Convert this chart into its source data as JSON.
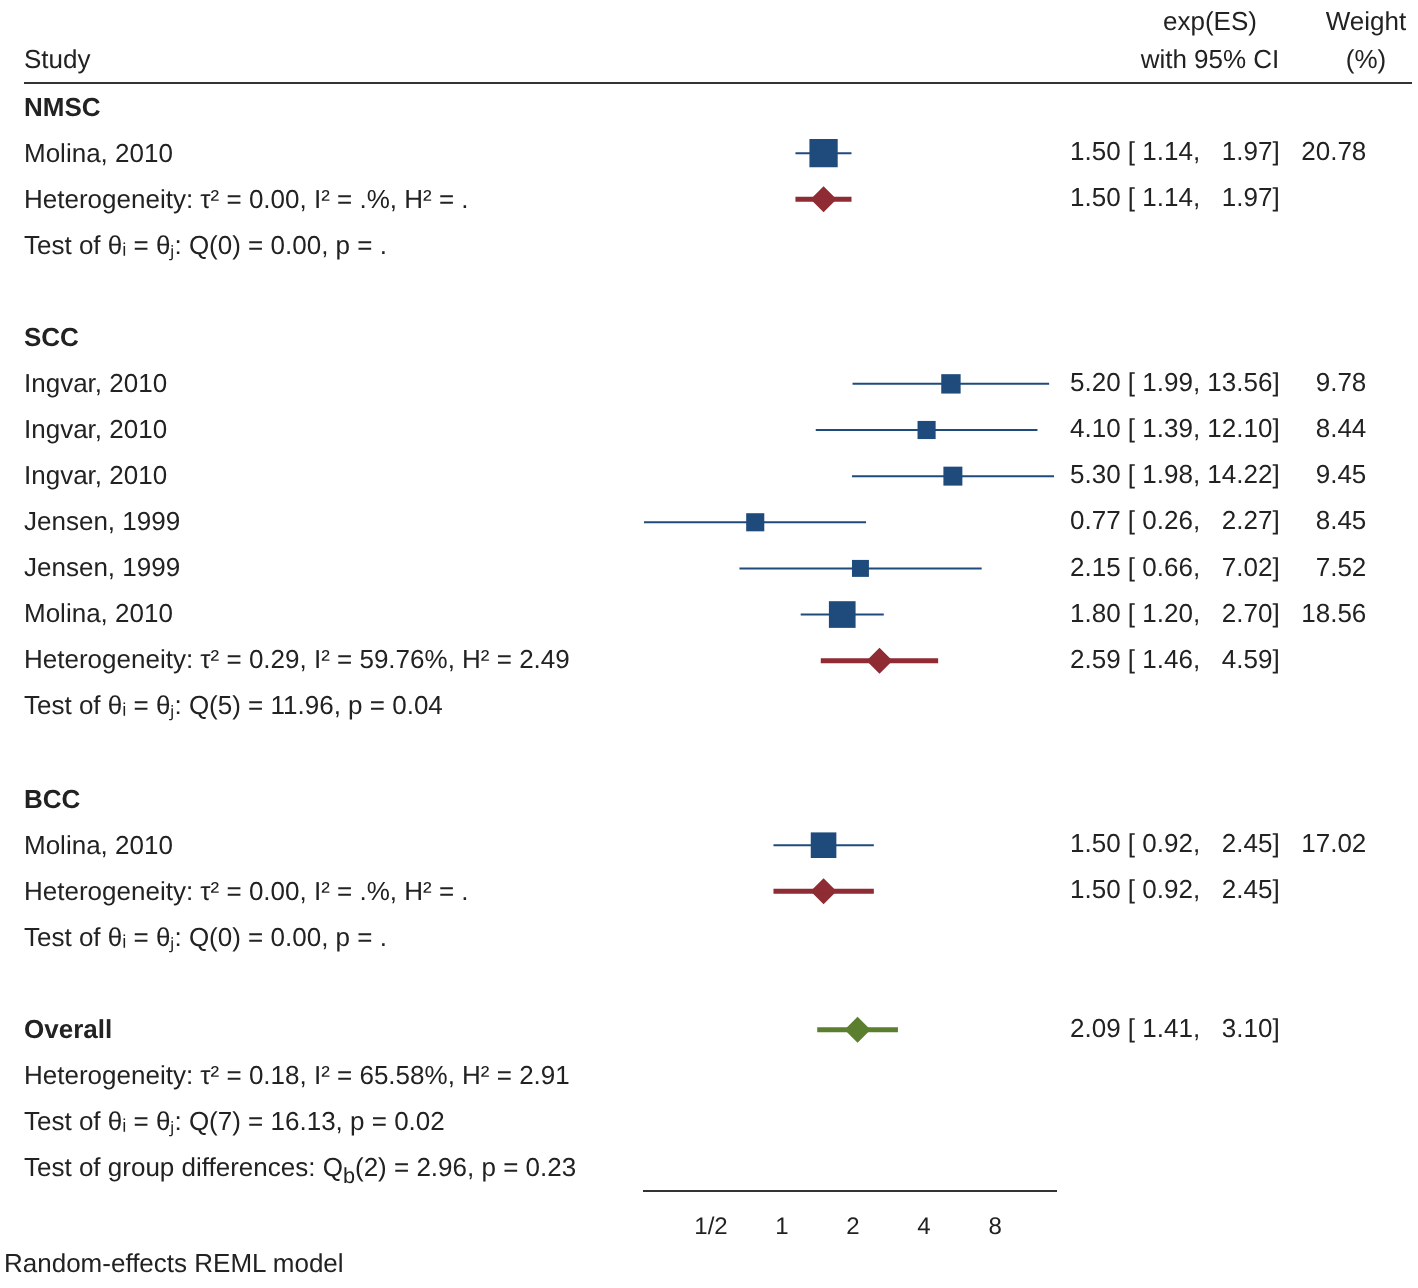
{
  "chart_data": {
    "type": "scatter",
    "orientation": "horizontal",
    "log": "x",
    "ylabel": "Study",
    "annotations": [
      "exp(ES)",
      "with 95% CI",
      "Weight",
      "(%)",
      "Random-effects REML model"
    ],
    "categories": [
      "NMSC",
      "Molina, 2010",
      "Heterogeneity: τ² = 0.00, I² = .%, H² = .",
      "Test of θᵢ = θⱼ: Q(0) = 0.00, p = .",
      null,
      "SCC",
      "Ingvar, 2010",
      "Ingvar, 2010",
      "Ingvar, 2010",
      "Jensen, 1999",
      "Jensen, 1999",
      "Molina, 2010",
      "Heterogeneity: τ² = 0.29, I² = 59.76%, H² = 2.49",
      "Test of θᵢ = θⱼ: Q(5) = 11.96, p = 0.04",
      null,
      "BCC",
      "Molina, 2010",
      "Heterogeneity: τ² = 0.00, I² = .%, H² = .",
      "Test of θᵢ = θⱼ: Q(0) = 0.00, p = .",
      null,
      "Overall",
      "Heterogeneity: τ² = 0.18, I² = 65.58%, H² = 2.91",
      "Test of θᵢ = θⱼ: Q(7) = 16.13, p = 0.02",
      "Test of group differences: Q$_{b}$(2) = 2.96, p = 0.23"
    ],
    "xlim": [
      0.26,
      14.5
    ],
    "xticks": [
      {
        "value": 0.5,
        "label": "1/2"
      },
      1,
      2,
      4,
      8
    ],
    "series": [
      {
        "type": "bubble",
        "marker": "square",
        "color": "#1f4a7c",
        "values": [
          null,
          1.5,
          null,
          null,
          null,
          null,
          5.2,
          4.1,
          5.3,
          0.77,
          2.15,
          1.8,
          null,
          null,
          null,
          null,
          1.5,
          null,
          null,
          null,
          null,
          null,
          null,
          null
        ],
        "errors": [
          null,
          [
            1.14,
            1.97
          ],
          null,
          null,
          null,
          null,
          [
            1.99,
            13.56
          ],
          [
            1.39,
            12.1
          ],
          [
            1.98,
            14.22
          ],
          [
            0.26,
            2.27
          ],
          [
            0.66,
            7.02
          ],
          [
            1.2,
            2.7
          ],
          null,
          null,
          null,
          null,
          [
            0.92,
            2.45
          ],
          null,
          null,
          null,
          null,
          null,
          null,
          null
        ],
        "sizes": [
          null,
          1,
          null,
          null,
          null,
          null,
          0.47,
          0.41,
          0.45,
          0.41,
          0.36,
          0.89,
          null,
          null,
          null,
          null,
          0.82,
          null,
          null,
          null,
          null,
          null,
          null,
          null
        ],
        "value_labels": [
          null,
          "1.50 [ 1.14,   1.97]   20.78",
          null,
          null,
          null,
          null,
          "5.20 [ 1.99, 13.56]     9.78",
          "4.10 [ 1.39, 12.10]     8.44",
          "5.30 [ 1.98, 14.22]     9.45",
          "0.77 [ 0.26,   2.27]     8.45",
          "2.15 [ 0.66,   7.02]     7.52",
          "1.80 [ 1.20,   2.70]   18.56",
          null,
          null,
          null,
          null,
          "1.50 [ 0.92,   2.45]   17.02",
          null,
          null,
          null,
          null,
          null,
          null,
          null
        ]
      },
      {
        "type": "scatter",
        "marker": "diamond",
        "colors": [
          null,
          null,
          "#8e2b33",
          null,
          null,
          null,
          null,
          null,
          null,
          null,
          null,
          null,
          "#8e2b33",
          null,
          null,
          null,
          null,
          "#8e2b33",
          null,
          null,
          "#5b7f2e",
          null,
          null,
          null
        ],
        "values": [
          null,
          null,
          1.5,
          null,
          null,
          null,
          null,
          null,
          null,
          null,
          null,
          null,
          2.59,
          null,
          null,
          null,
          null,
          1.5,
          null,
          null,
          2.09,
          null,
          null,
          null
        ],
        "errors": [
          null,
          null,
          [
            1.14,
            1.97
          ],
          null,
          null,
          null,
          null,
          null,
          null,
          null,
          null,
          null,
          [
            1.46,
            4.59
          ],
          null,
          null,
          null,
          null,
          [
            0.92,
            2.45
          ],
          null,
          null,
          [
            1.41,
            3.1
          ],
          null,
          null,
          null
        ],
        "value_labels": [
          null,
          null,
          "1.50 [ 1.14,   1.97]",
          null,
          null,
          null,
          null,
          null,
          null,
          null,
          null,
          null,
          "2.59 [ 1.46,   4.59]",
          null,
          null,
          null,
          null,
          "1.50 [ 0.92,   2.45]",
          null,
          null,
          "2.09 [ 1.41,   3.10]",
          null,
          null,
          null
        ]
      }
    ]
  }
}
